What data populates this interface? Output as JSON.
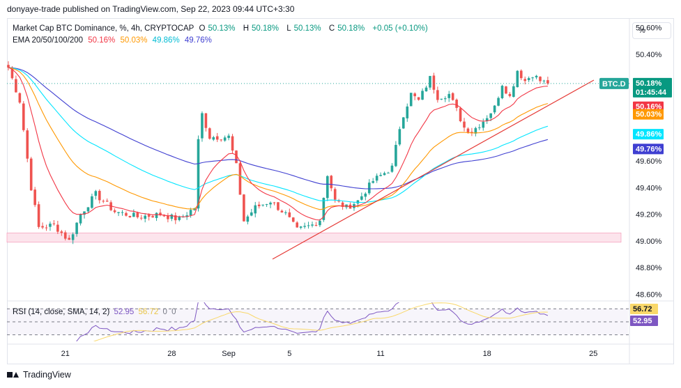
{
  "publisher_line": "donyaye-trade published on TradingView.com, Sep 22, 2023 09:44 UTC+3:30",
  "legend": {
    "symbol": "Market Cap BTC Dominance, %, 4h, CRYPTOCAP",
    "o_label": "O",
    "o_value": "50.13%",
    "h_label": "H",
    "h_value": "50.18%",
    "l_label": "L",
    "l_value": "50.13%",
    "c_label": "C",
    "c_value": "50.18%",
    "change": "+0.05 (+0.10%)",
    "ema_label": "EMA 20/50/100/200",
    "ema20": "50.16%",
    "ema50": "50.03%",
    "ema100": "49.86%",
    "ema200": "49.76%"
  },
  "rsi_legend": {
    "label": "RSI (14, close, SMA, 14, 2)",
    "rsi": "52.95",
    "sma": "56.72",
    "z1": "0",
    "z2": "0"
  },
  "scale_button": "%",
  "footer_brand": "TradingView",
  "colors": {
    "up": "#26a69a",
    "down": "#ef5350",
    "ema20": "#f23645",
    "ema50": "#ff9800",
    "ema100": "#00e5ff",
    "ema200": "#3f3fd1",
    "rsi": "#7e57c2",
    "rsi_sma": "#f9d86b",
    "trendline": "#e53935",
    "zone": "#fce4ec"
  },
  "chart_data": {
    "type": "candlestick",
    "x_ticks": [
      "21",
      "28",
      "Sep",
      "5",
      "11",
      "18",
      "25"
    ],
    "y_ticks": [
      "50.60%",
      "50.40%",
      "50.20%",
      "50.00%",
      "49.80%",
      "49.60%",
      "49.40%",
      "49.20%",
      "49.00%",
      "48.80%",
      "48.60%"
    ],
    "ylim": [
      48.55,
      50.66
    ],
    "price_labels": {
      "symbol_tag": "BTC.D",
      "last": "50.18%",
      "countdown": "01:45:44",
      "ema20": "50.16%",
      "ema50": "50.03%",
      "ema100": "49.86%",
      "ema200": "49.76%"
    },
    "support_zone": [
      48.99,
      49.06
    ],
    "rsi_labels": {
      "sma": "56.72",
      "rsi": "52.95"
    },
    "keypoints": [
      [
        0,
        50.3
      ],
      [
        3,
        50.05
      ],
      [
        6,
        49.4
      ],
      [
        8,
        49.1
      ],
      [
        12,
        49.12
      ],
      [
        16,
        49.0
      ],
      [
        19,
        49.2
      ],
      [
        23,
        49.35
      ],
      [
        28,
        49.22
      ],
      [
        34,
        49.18
      ],
      [
        40,
        49.2
      ],
      [
        45,
        49.16
      ],
      [
        49,
        49.25
      ],
      [
        50,
        49.75
      ],
      [
        51,
        49.95
      ],
      [
        53,
        49.78
      ],
      [
        58,
        49.78
      ],
      [
        60,
        49.56
      ],
      [
        62,
        49.15
      ],
      [
        65,
        49.25
      ],
      [
        69,
        49.3
      ],
      [
        73,
        49.2
      ],
      [
        76,
        49.08
      ],
      [
        80,
        49.12
      ],
      [
        82,
        49.16
      ],
      [
        84,
        49.5
      ],
      [
        86,
        49.3
      ],
      [
        89,
        49.25
      ],
      [
        92,
        49.3
      ],
      [
        96,
        49.45
      ],
      [
        101,
        49.55
      ],
      [
        103,
        49.85
      ],
      [
        104,
        49.95
      ],
      [
        106,
        50.1
      ],
      [
        108,
        50.05
      ],
      [
        111,
        50.22
      ],
      [
        113,
        50.08
      ],
      [
        116,
        50.1
      ],
      [
        118,
        49.98
      ],
      [
        120,
        49.85
      ],
      [
        122,
        49.82
      ],
      [
        125,
        49.9
      ],
      [
        128,
        50.0
      ],
      [
        130,
        50.18
      ],
      [
        132,
        50.08
      ],
      [
        134,
        50.28
      ],
      [
        136,
        50.2
      ],
      [
        138,
        50.25
      ],
      [
        140,
        50.2
      ],
      [
        142,
        50.18
      ]
    ],
    "ema_end_values": {
      "ema20": 50.16,
      "ema50": 50.03,
      "ema100": 49.86,
      "ema200": 49.76
    },
    "rsi_ylim": [
      20,
      80
    ]
  }
}
